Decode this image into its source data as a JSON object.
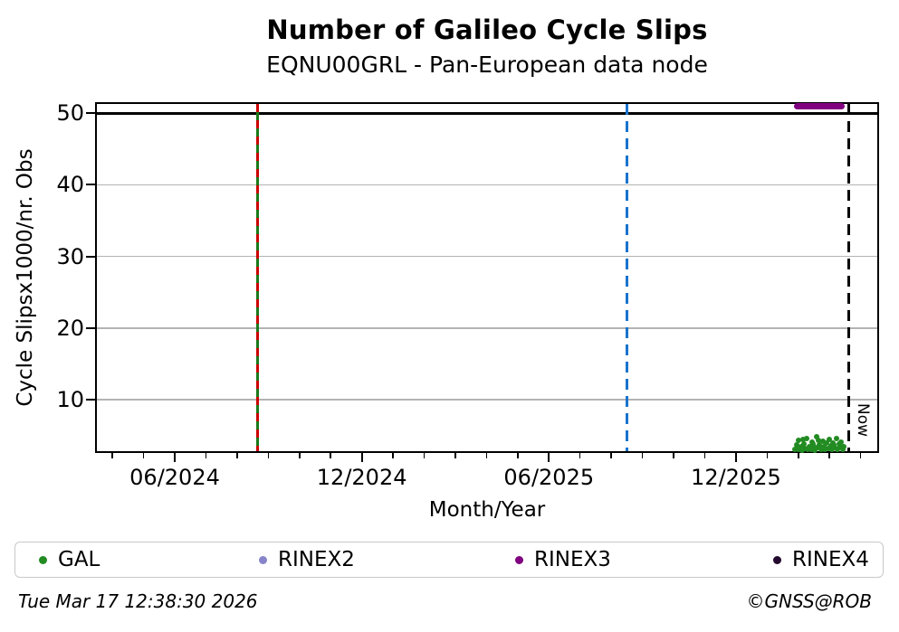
{
  "title": "Number of Galileo Cycle Slips",
  "subtitle": "EQNU00GRL - Pan-European data node",
  "footer": {
    "timestamp": "Tue Mar 17 12:38:30 2026",
    "credit": "©GNSS@ROB"
  },
  "legend": {
    "items": [
      {
        "label": "GAL",
        "color": "#228B22"
      },
      {
        "label": "RINEX2",
        "color": "#8884c9"
      },
      {
        "label": "RINEX3",
        "color": "#800080"
      },
      {
        "label": "RINEX4",
        "color": "#250a30"
      }
    ]
  },
  "chart_data": {
    "type": "scatter",
    "title": "Number of Galileo Cycle Slips",
    "subtitle": "EQNU00GRL - Pan-European data node",
    "xlabel": "Month/Year",
    "ylabel": "Cycle Slipsx1000/nr. Obs",
    "x_unit": "months since 2024-01-01",
    "xlim": [
      2.45,
      27.6
    ],
    "ylim": [
      2.5,
      51.5
    ],
    "x_ticks": [
      {
        "t": 5,
        "label": "06/2024"
      },
      {
        "t": 11,
        "label": "12/2024"
      },
      {
        "t": 17,
        "label": "06/2025"
      },
      {
        "t": 23,
        "label": "12/2025"
      }
    ],
    "x_minor_ticks": [
      3,
      4,
      6,
      7,
      8,
      9,
      10,
      12,
      13,
      14,
      15,
      16,
      18,
      19,
      20,
      21,
      22,
      24,
      25,
      26,
      27
    ],
    "y_ticks": [
      10,
      20,
      30,
      40,
      50
    ],
    "grid_values": [
      10,
      20,
      30,
      40
    ],
    "grid_color": "#b3b3b3",
    "threshold_line": {
      "value": 50,
      "color": "#000000"
    },
    "vlines": [
      {
        "t": 7.67,
        "style": "solid-with-dashes",
        "colors": [
          "#1a7a1a",
          "#cc0000"
        ],
        "name": "vline-green-red"
      },
      {
        "t": 19.49,
        "style": "dashed",
        "colors": [
          "#1873cc"
        ],
        "name": "vline-blue"
      },
      {
        "t": 26.63,
        "style": "dashed",
        "colors": [
          "#000000"
        ],
        "label": "Now",
        "name": "vline-now"
      }
    ],
    "series": [
      {
        "name": "GAL",
        "color": "#228B22",
        "type": "scatter",
        "points": [
          [
            24.9,
            3.1
          ],
          [
            24.95,
            3.7
          ],
          [
            25.0,
            3.0
          ],
          [
            25.02,
            4.3
          ],
          [
            25.08,
            3.4
          ],
          [
            25.12,
            2.9
          ],
          [
            25.15,
            4.4
          ],
          [
            25.18,
            3.8
          ],
          [
            25.22,
            3.2
          ],
          [
            25.27,
            4.6
          ],
          [
            25.3,
            3.0
          ],
          [
            25.36,
            3.5
          ],
          [
            25.4,
            3.1
          ],
          [
            25.44,
            4.1
          ],
          [
            25.48,
            3.8
          ],
          [
            25.5,
            3.4
          ],
          [
            25.54,
            2.9
          ],
          [
            25.58,
            4.8
          ],
          [
            25.62,
            3.3
          ],
          [
            25.65,
            4.3
          ],
          [
            25.68,
            3.7
          ],
          [
            25.72,
            3.0
          ],
          [
            25.78,
            4.2
          ],
          [
            25.82,
            3.5
          ],
          [
            25.86,
            3.1
          ],
          [
            25.9,
            3.9
          ],
          [
            25.95,
            3.2
          ],
          [
            26.0,
            4.4
          ],
          [
            26.05,
            3.6
          ],
          [
            26.08,
            3.0
          ],
          [
            26.12,
            4.0
          ],
          [
            26.15,
            3.7
          ],
          [
            26.18,
            3.3
          ],
          [
            26.22,
            4.6
          ],
          [
            26.26,
            3.1
          ],
          [
            26.3,
            3.8
          ],
          [
            26.34,
            3.4
          ],
          [
            26.38,
            4.1
          ],
          [
            26.42,
            3.0
          ],
          [
            26.45,
            3.5
          ]
        ]
      },
      {
        "name": "RINEX2",
        "color": "#8884c9",
        "type": "scatter",
        "points": []
      },
      {
        "name": "RINEX3",
        "color": "#800080",
        "type": "band",
        "t_start": 24.85,
        "t_end": 26.5,
        "value": 50.9
      },
      {
        "name": "RINEX4",
        "color": "#250a30",
        "type": "scatter",
        "points": []
      }
    ],
    "legend_position": "bottom",
    "grid": true
  }
}
